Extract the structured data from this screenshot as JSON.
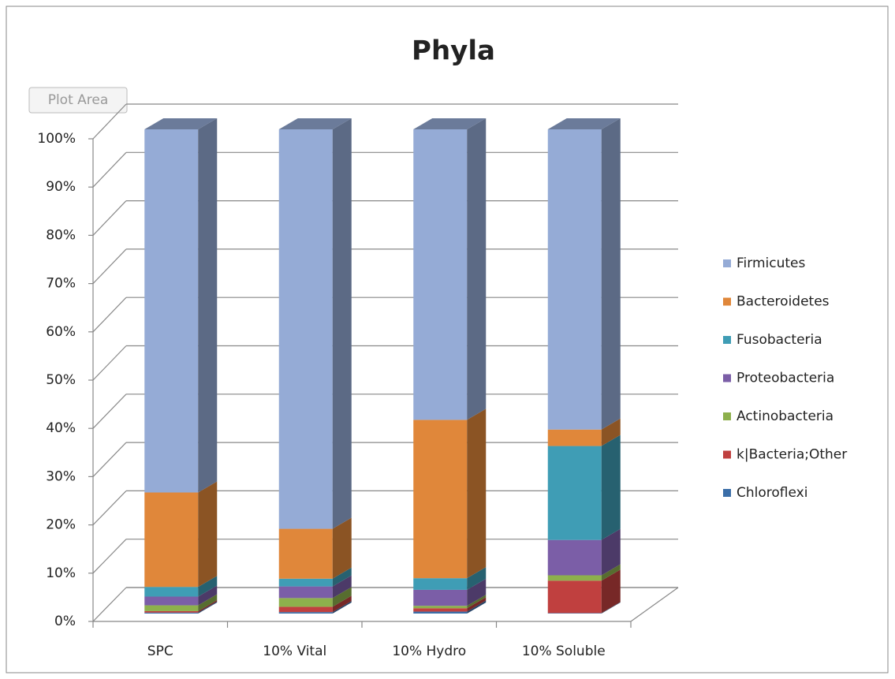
{
  "chart_data": {
    "type": "bar3d_stacked_percent",
    "title": "Phyla",
    "tooltip": "Plot Area",
    "categories": [
      "SPC",
      "10% Vital",
      "10% Hydro",
      "10% Soluble"
    ],
    "series": [
      {
        "name": "Firmicutes",
        "color": "#95abd6",
        "values": [
          75,
          82.5,
          60,
          62
        ]
      },
      {
        "name": "Bacteroidetes",
        "color": "#e0873a",
        "values": [
          19.5,
          10.3,
          32.7,
          3.4
        ]
      },
      {
        "name": "Fusobacteria",
        "color": "#3f9db5",
        "values": [
          2,
          1.6,
          2.4,
          19.4
        ]
      },
      {
        "name": "Proteobacteria",
        "color": "#7b5ea7",
        "values": [
          1.8,
          2.4,
          3.3,
          7.3
        ]
      },
      {
        "name": "Actinobacteria",
        "color": "#8db04c",
        "values": [
          1.2,
          1.8,
          0.5,
          1.1
        ]
      },
      {
        "name": "k|Bacteria;Other",
        "color": "#c0403f",
        "values": [
          0.3,
          1.1,
          0.7,
          6.7
        ]
      },
      {
        "name": "Chloroflexi",
        "color": "#3b6ea8",
        "values": [
          0.2,
          0.3,
          0.4,
          0.1
        ]
      }
    ],
    "ylim": [
      0,
      100
    ],
    "yticks": [
      {
        "value": 0,
        "label": "0%"
      },
      {
        "value": 10,
        "label": "10%"
      },
      {
        "value": 20,
        "label": "20%"
      },
      {
        "value": 30,
        "label": "30%"
      },
      {
        "value": 40,
        "label": "40%"
      },
      {
        "value": 50,
        "label": "50%"
      },
      {
        "value": 60,
        "label": "60%"
      },
      {
        "value": 70,
        "label": "70%"
      },
      {
        "value": 80,
        "label": "80%"
      },
      {
        "value": 90,
        "label": "90%"
      },
      {
        "value": 100,
        "label": "100%"
      }
    ],
    "grid": true,
    "legend": "right"
  }
}
